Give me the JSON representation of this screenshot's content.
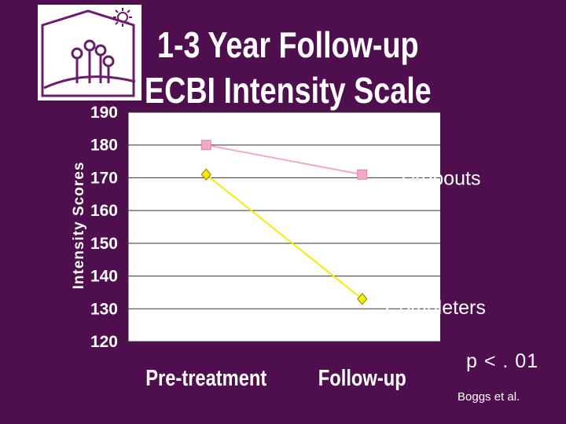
{
  "title": {
    "line1": "1-3 Year Follow-up",
    "line2": "ECBI Intensity Scale"
  },
  "logo": {
    "icon": "house-with-flowers-logo",
    "colors": {
      "fill": "#ffffff",
      "stroke": "#6a1c6a"
    }
  },
  "chart_data": {
    "type": "line",
    "categories": [
      "Pre-treatment",
      "Follow-up"
    ],
    "ylabel": "Intensity Scores",
    "xlabel": "",
    "ylim": [
      120,
      190
    ],
    "yticks": [
      120,
      130,
      140,
      150,
      160,
      170,
      180,
      190
    ],
    "grid": true,
    "legend_placement": "inline labels at right end of each series",
    "series": [
      {
        "name": "Dropouts",
        "values": [
          180,
          171
        ],
        "marker": "square",
        "color": "#f2a8c9"
      },
      {
        "name": "Completers",
        "values": [
          171,
          133
        ],
        "marker": "diamond",
        "color": "#f5ec00"
      }
    ]
  },
  "notes": {
    "p_value": "p < . 01",
    "citation": "Boggs et al."
  },
  "colors": {
    "background": "#4f0f4f",
    "plot_background": "#ffffff",
    "gridline": "#333333",
    "text": "#ffffff"
  }
}
